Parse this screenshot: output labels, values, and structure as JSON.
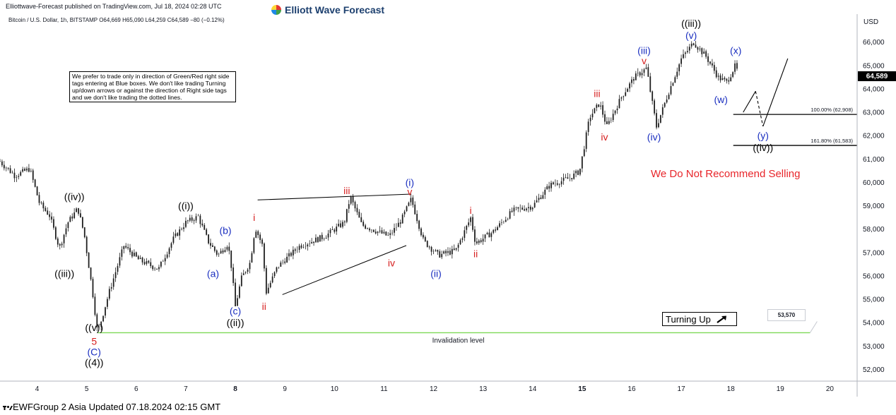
{
  "header": {
    "published": "Elliottwave-Forecast published on TradingView.com, Jul 18, 2024 02:28 UTC",
    "symbol_line": "Bitcoin / U.S. Dollar, 1h, BITSTAMP  O64,669  H65,090  L64,259  C64,589  −80 (−0.12%)",
    "brand": "Elliott Wave Forecast"
  },
  "note_text": "We prefer to trade only in direction of Green/Red right side tags entering at Blue boxes. We don't like trading Turning up/down arrows or against the direction of Right side tags and we don't like trading the dotted lines.",
  "recommendation": "We Do Not Recommend Selling",
  "turning_label": "Turning Up",
  "footer": "EWFGroup 2 Asia Updated 07.18.2024 02:15 GMT",
  "price_badge": "64,589",
  "invalidation_badge": "53,570",
  "colors": {
    "blue_label": "#1b2fc0",
    "red_label": "#d61f1f",
    "black_label": "#000000",
    "invalidation_line": "#7ed957",
    "candle": "#1f1f1f"
  },
  "chart_data": {
    "type": "candlestick",
    "title": "",
    "xlabel": "",
    "ylabel": "USD",
    "y_axis_title": "USD",
    "ylim": [
      51500,
      67200
    ],
    "y_ticks": [
      52000,
      53000,
      54000,
      55000,
      56000,
      57000,
      58000,
      59000,
      60000,
      61000,
      62000,
      63000,
      64000,
      65000,
      66000
    ],
    "y_tick_labels": [
      "52,000",
      "53,000",
      "54,000",
      "55,000",
      "56,000",
      "57,000",
      "58,000",
      "59,000",
      "60,000",
      "61,000",
      "62,000",
      "63,000",
      "64,000",
      "65,000",
      "66,000"
    ],
    "x_range_days": [
      3.25,
      20.55
    ],
    "x_ticks": [
      {
        "day": 4,
        "label": "4",
        "bold": false
      },
      {
        "day": 5,
        "label": "5",
        "bold": false
      },
      {
        "day": 6,
        "label": "6",
        "bold": false
      },
      {
        "day": 7,
        "label": "7",
        "bold": false
      },
      {
        "day": 8,
        "label": "8",
        "bold": true
      },
      {
        "day": 9,
        "label": "9",
        "bold": false
      },
      {
        "day": 10,
        "label": "10",
        "bold": false
      },
      {
        "day": 11,
        "label": "11",
        "bold": false
      },
      {
        "day": 12,
        "label": "12",
        "bold": false
      },
      {
        "day": 13,
        "label": "13",
        "bold": false
      },
      {
        "day": 14,
        "label": "14",
        "bold": false
      },
      {
        "day": 15,
        "label": "15",
        "bold": true
      },
      {
        "day": 16,
        "label": "16",
        "bold": false
      },
      {
        "day": 17,
        "label": "17",
        "bold": false
      },
      {
        "day": 18,
        "label": "18",
        "bold": false
      },
      {
        "day": 19,
        "label": "19",
        "bold": false
      },
      {
        "day": 20,
        "label": "20",
        "bold": false
      }
    ],
    "current_price": 64589,
    "ohlc_last": {
      "open": 64669,
      "high": 65090,
      "low": 64259,
      "close": 64589
    },
    "path": [
      [
        3.25,
        60900
      ],
      [
        3.55,
        60300
      ],
      [
        3.85,
        60600
      ],
      [
        4.05,
        59100
      ],
      [
        4.25,
        58600
      ],
      [
        4.45,
        57200
      ],
      [
        4.62,
        58300
      ],
      [
        4.82,
        58900
      ],
      [
        4.95,
        57800
      ],
      [
        5.12,
        55300
      ],
      [
        5.22,
        53550
      ],
      [
        5.45,
        55300
      ],
      [
        5.75,
        57300
      ],
      [
        6.05,
        56700
      ],
      [
        6.45,
        56300
      ],
      [
        6.75,
        57600
      ],
      [
        7.0,
        58300
      ],
      [
        7.25,
        58550
      ],
      [
        7.45,
        57500
      ],
      [
        7.65,
        56900
      ],
      [
        7.85,
        57400
      ],
      [
        7.92,
        56400
      ],
      [
        8.0,
        54700
      ],
      [
        8.12,
        55900
      ],
      [
        8.3,
        56600
      ],
      [
        8.4,
        58100
      ],
      [
        8.55,
        57300
      ],
      [
        8.62,
        55300
      ],
      [
        8.85,
        56400
      ],
      [
        9.3,
        57300
      ],
      [
        9.8,
        57700
      ],
      [
        10.2,
        58300
      ],
      [
        10.32,
        59400
      ],
      [
        10.55,
        58200
      ],
      [
        11.1,
        57700
      ],
      [
        11.35,
        58400
      ],
      [
        11.55,
        59300
      ],
      [
        11.8,
        57500
      ],
      [
        12.1,
        56900
      ],
      [
        12.45,
        57100
      ],
      [
        12.75,
        58500
      ],
      [
        12.85,
        57400
      ],
      [
        13.2,
        57900
      ],
      [
        13.6,
        58800
      ],
      [
        14.0,
        59000
      ],
      [
        14.35,
        59900
      ],
      [
        14.75,
        60200
      ],
      [
        14.95,
        60500
      ],
      [
        15.15,
        62800
      ],
      [
        15.35,
        63400
      ],
      [
        15.5,
        62400
      ],
      [
        15.8,
        63700
      ],
      [
        16.05,
        64500
      ],
      [
        16.3,
        64900
      ],
      [
        16.4,
        63600
      ],
      [
        16.5,
        62400
      ],
      [
        16.75,
        63900
      ],
      [
        17.0,
        65300
      ],
      [
        17.25,
        66000
      ],
      [
        17.5,
        65400
      ],
      [
        17.75,
        64500
      ],
      [
        17.92,
        64300
      ],
      [
        18.1,
        65050
      ],
      [
        18.15,
        64589
      ]
    ],
    "projection_solid": [
      [
        18.25,
        63000
      ],
      [
        18.5,
        63900
      ]
    ],
    "projection_dashed": [
      [
        18.5,
        63900
      ],
      [
        18.65,
        62400
      ]
    ],
    "projection_turn_up": [
      [
        18.65,
        62400
      ],
      [
        19.15,
        65300
      ]
    ],
    "triangle_lines": [
      {
        "from": [
          8.45,
          59250
        ],
        "to": [
          11.55,
          59500
        ]
      },
      {
        "from": [
          8.95,
          55200
        ],
        "to": [
          11.45,
          57300
        ]
      }
    ],
    "fib_levels": [
      {
        "label": "100.00% (62,908)",
        "value": 62908,
        "from_day": 18.05,
        "to_day": 20.55
      },
      {
        "label": "161.80% (61,583)",
        "value": 61583,
        "from_day": 18.05,
        "to_day": 20.55
      }
    ],
    "invalidation": {
      "label": "Invalidation level",
      "value": 53570,
      "from_day": 5.22,
      "to_day": 19.6
    },
    "wave_labels": [
      {
        "text": "((iv))",
        "day": 4.75,
        "price": 59400,
        "color": "black"
      },
      {
        "text": "((iii))",
        "day": 4.55,
        "price": 56100,
        "color": "black"
      },
      {
        "text": "((v))",
        "day": 5.15,
        "price": 53800,
        "color": "black"
      },
      {
        "text": "5",
        "day": 5.15,
        "price": 53200,
        "color": "red"
      },
      {
        "text": "(C)",
        "day": 5.15,
        "price": 52750,
        "color": "blue"
      },
      {
        "text": "((4))",
        "day": 5.15,
        "price": 52300,
        "color": "black"
      },
      {
        "text": "((i))",
        "day": 7.0,
        "price": 59000,
        "color": "black"
      },
      {
        "text": "(b)",
        "day": 7.8,
        "price": 57950,
        "color": "blue"
      },
      {
        "text": "(a)",
        "day": 7.55,
        "price": 56100,
        "color": "blue"
      },
      {
        "text": "(c)",
        "day": 8.0,
        "price": 54500,
        "color": "blue"
      },
      {
        "text": "((ii))",
        "day": 8.0,
        "price": 54000,
        "color": "black"
      },
      {
        "text": "i",
        "day": 8.38,
        "price": 58500,
        "color": "red"
      },
      {
        "text": "ii",
        "day": 8.58,
        "price": 54700,
        "color": "red"
      },
      {
        "text": "iii",
        "day": 10.25,
        "price": 59650,
        "color": "red"
      },
      {
        "text": "iv",
        "day": 11.15,
        "price": 56550,
        "color": "red"
      },
      {
        "text": "(i)",
        "day": 11.52,
        "price": 60000,
        "color": "blue"
      },
      {
        "text": "v",
        "day": 11.52,
        "price": 59600,
        "color": "red"
      },
      {
        "text": "(ii)",
        "day": 12.05,
        "price": 56100,
        "color": "blue"
      },
      {
        "text": "i",
        "day": 12.75,
        "price": 58800,
        "color": "red"
      },
      {
        "text": "ii",
        "day": 12.85,
        "price": 56950,
        "color": "red"
      },
      {
        "text": "iii",
        "day": 15.3,
        "price": 63800,
        "color": "red"
      },
      {
        "text": "iv",
        "day": 15.45,
        "price": 61950,
        "color": "red"
      },
      {
        "text": "(iii)",
        "day": 16.25,
        "price": 65650,
        "color": "blue"
      },
      {
        "text": "v",
        "day": 16.25,
        "price": 65200,
        "color": "red"
      },
      {
        "text": "(iv)",
        "day": 16.45,
        "price": 61950,
        "color": "blue"
      },
      {
        "text": "((iii))",
        "day": 17.2,
        "price": 66800,
        "color": "black"
      },
      {
        "text": "(v)",
        "day": 17.2,
        "price": 66300,
        "color": "blue"
      },
      {
        "text": "(x)",
        "day": 18.1,
        "price": 65650,
        "color": "blue"
      },
      {
        "text": "(w)",
        "day": 17.8,
        "price": 63550,
        "color": "blue"
      },
      {
        "text": "(y)",
        "day": 18.65,
        "price": 62000,
        "color": "blue"
      },
      {
        "text": "((iv))",
        "day": 18.65,
        "price": 61500,
        "color": "black"
      }
    ]
  }
}
